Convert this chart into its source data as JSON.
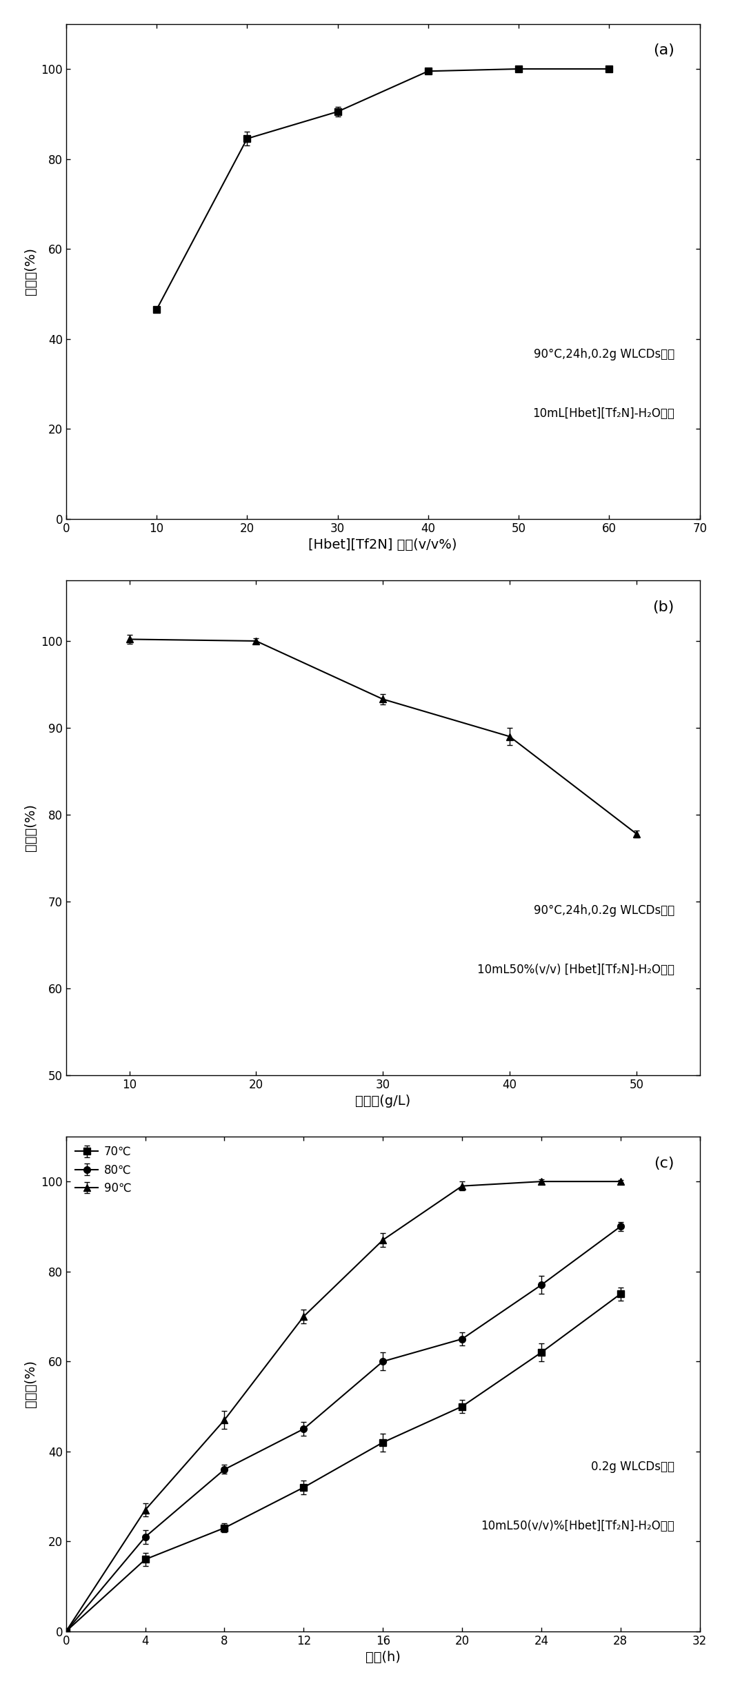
{
  "panel_a": {
    "x": [
      10,
      20,
      30,
      40,
      50,
      60
    ],
    "y": [
      46.5,
      84.5,
      90.5,
      99.5,
      100.0,
      100.0
    ],
    "yerr": [
      0.5,
      1.5,
      1.0,
      0.5,
      0.3,
      0.3
    ],
    "xlabel": "[Hbet][Tf2N] 浓度(v/v%)",
    "ylabel": "浸出率(%)",
    "xlim": [
      0,
      70
    ],
    "ylim": [
      0,
      110
    ],
    "yticks": [
      0,
      20,
      40,
      60,
      80,
      100
    ],
    "xticks": [
      0,
      10,
      20,
      30,
      40,
      50,
      60,
      70
    ],
    "annotation_line1": "90°C,24h,0.2g WLCDs粉末",
    "annotation_line2": "10mL[Hbet][Tf₂N]-H₂O体系",
    "label": "(a)"
  },
  "panel_b": {
    "x": [
      10,
      20,
      30,
      40,
      50
    ],
    "y": [
      100.2,
      100.0,
      93.3,
      89.0,
      77.8
    ],
    "yerr": [
      0.5,
      0.3,
      0.6,
      1.0,
      0.4
    ],
    "xlabel": "固液比(g/L)",
    "ylabel": "浸出率(%)",
    "xlim": [
      5,
      55
    ],
    "ylim": [
      50,
      107
    ],
    "yticks": [
      50,
      60,
      70,
      80,
      90,
      100
    ],
    "xticks": [
      10,
      20,
      30,
      40,
      50
    ],
    "annotation_line1": "90°C,24h,0.2g WLCDs粉末",
    "annotation_line2": "10mL50%(v/v) [Hbet][Tf₂N]-H₂O体系",
    "label": "(b)"
  },
  "panel_c": {
    "series": [
      {
        "label": "70℃",
        "x": [
          0,
          4,
          8,
          12,
          16,
          20,
          24,
          28
        ],
        "y": [
          0,
          16,
          23,
          32,
          42,
          50,
          62,
          75
        ],
        "yerr": [
          0,
          1.5,
          1.0,
          1.5,
          2.0,
          1.5,
          2.0,
          1.5
        ],
        "marker": "s"
      },
      {
        "label": "80℃",
        "x": [
          0,
          4,
          8,
          12,
          16,
          20,
          24,
          28
        ],
        "y": [
          0,
          21,
          36,
          45,
          60,
          65,
          77,
          90
        ],
        "yerr": [
          0,
          1.5,
          1.0,
          1.5,
          2.0,
          1.5,
          2.0,
          1.0
        ],
        "marker": "o"
      },
      {
        "label": "90℃",
        "x": [
          0,
          4,
          8,
          12,
          16,
          20,
          24,
          28
        ],
        "y": [
          0,
          27,
          47,
          70,
          87,
          99,
          100,
          100
        ],
        "yerr": [
          0,
          1.5,
          2.0,
          1.5,
          1.5,
          1.0,
          0.5,
          0.3
        ],
        "marker": "^"
      }
    ],
    "xlabel": "时间(h)",
    "ylabel": "浸出率(%)",
    "xlim": [
      0,
      32
    ],
    "ylim": [
      0,
      110
    ],
    "yticks": [
      0,
      20,
      40,
      60,
      80,
      100
    ],
    "xticks": [
      0,
      4,
      8,
      12,
      16,
      20,
      24,
      28,
      32
    ],
    "annotation_line1": "0.2g WLCDs粉末",
    "annotation_line2": "10mL50(v/v)%[Hbet][Tf₂N]-H₂O体系",
    "label": "(c)"
  },
  "line_color": "#000000",
  "marker_size": 7,
  "font_size_label": 14,
  "font_size_tick": 12,
  "font_size_annot": 12,
  "font_size_panel": 16
}
